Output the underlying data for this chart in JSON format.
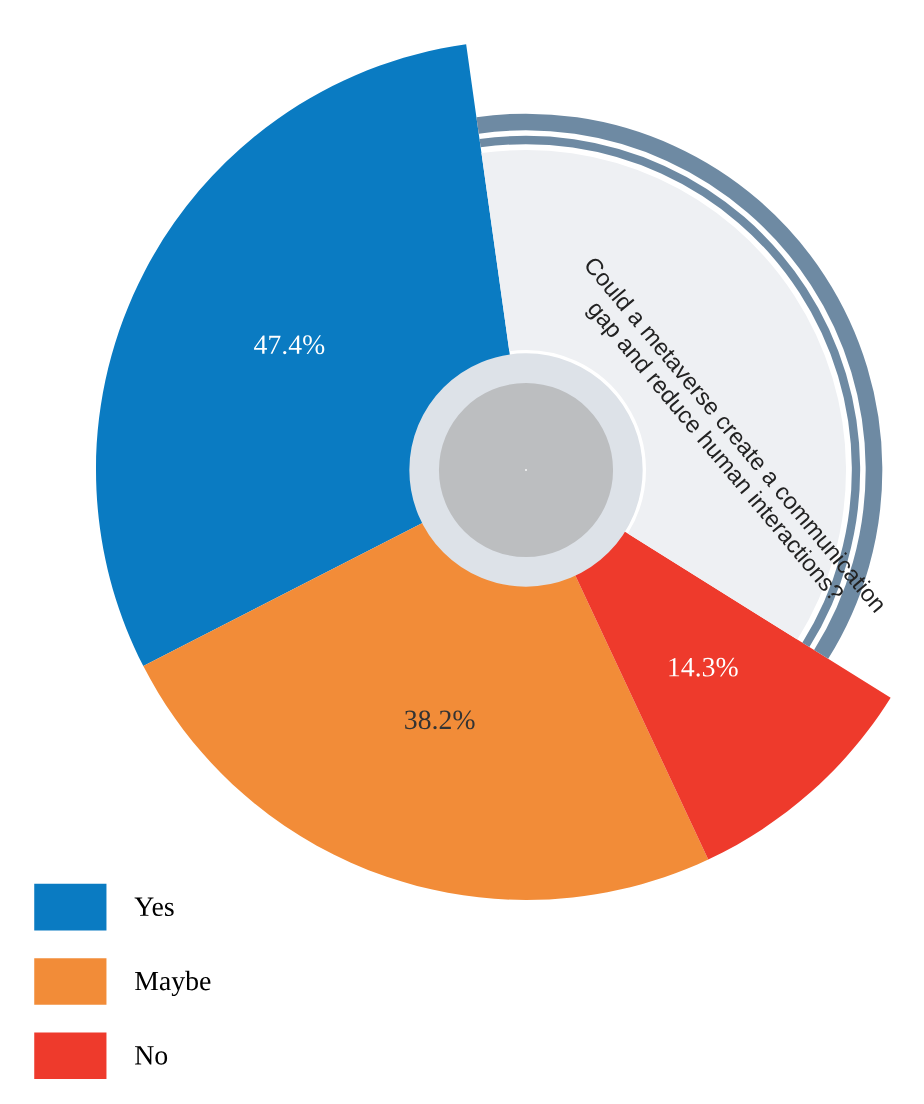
{
  "chart_data": {
    "type": "donut",
    "title": "Could a metaverse create a communication\ngap and reduce human interactions?",
    "categories": [
      "Yes",
      "Maybe",
      "No"
    ],
    "values": [
      47.4,
      38.2,
      14.3
    ],
    "colors": [
      "#0a7bc2",
      "#f28c38",
      "#ee3a2c"
    ],
    "value_labels": [
      "47.4%",
      "38.2%",
      "14.3%"
    ],
    "legend": "bottom left"
  }
}
